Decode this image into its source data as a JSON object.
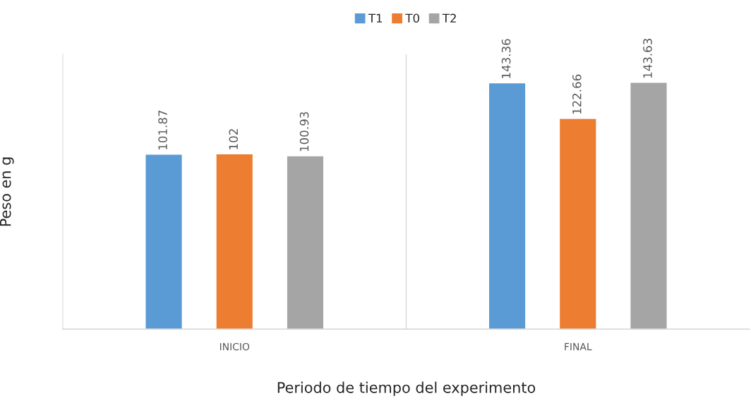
{
  "chart_data": {
    "type": "bar",
    "xlabel": "Periodo de tiempo del experimento",
    "ylabel": "Peso en g",
    "categories": [
      "INICIO",
      "FINAL"
    ],
    "series": [
      {
        "name": "T1",
        "color": "#5b9bd5",
        "values": [
          101.87,
          143.36
        ]
      },
      {
        "name": "T0",
        "color": "#ed7d31",
        "values": [
          102,
          122.66
        ]
      },
      {
        "name": "T2",
        "color": "#a5a5a5",
        "values": [
          100.93,
          143.63
        ]
      }
    ],
    "ylim": [
      0,
      160
    ],
    "tick_labels": "x",
    "data_labels": true,
    "legend": "top",
    "grid": "x"
  }
}
